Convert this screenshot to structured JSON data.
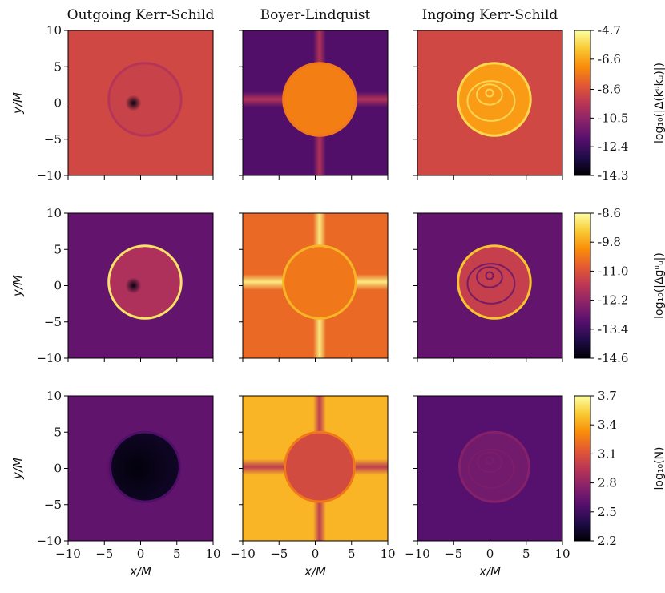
{
  "chart_data": {
    "type": "heatmap",
    "colormap": "inferno",
    "column_titles": [
      "Outgoing Kerr-Schild",
      "Boyer-Lindquist",
      "Ingoing Kerr-Schild"
    ],
    "xlabel": "x/M",
    "ylabel": "y/M",
    "xlim": [
      -10,
      10
    ],
    "ylim": [
      -10,
      10
    ],
    "axis_ticks": [
      -10,
      -5,
      0,
      5,
      10
    ],
    "axis_tick_labels": [
      "−10",
      "−5",
      "0",
      "5",
      "10"
    ],
    "rows": [
      {
        "quantity": "log10(|Δ(k^μ k_μ)|)",
        "colorbar_label": "log₁₀(|Δ(kᵘkᵤ)|)",
        "colorbar_ticks": [
          "-4.7",
          "-6.6",
          "-8.6",
          "-10.5",
          "-12.4",
          "-14.3"
        ],
        "vmin": -14.3,
        "vmax": -4.7,
        "panels": [
          {
            "background": -8.9,
            "disk": -9.1,
            "center": -14.0,
            "center_offset": [
              -1,
              0
            ],
            "ring": -9.6,
            "disk_x": 0.6,
            "disk_y": 0.5,
            "disk_r": 5.0
          },
          {
            "background": -12.0,
            "disk": -7.4,
            "ring": -7.6,
            "cross": -9.6,
            "disk_x": 0.6,
            "disk_y": 0.5,
            "disk_r": 5.0
          },
          {
            "background": -8.9,
            "disk": -6.8,
            "ring": -5.6,
            "swirl": -5.4,
            "disk_x": 0.6,
            "disk_y": 0.5,
            "disk_r": 5.0
          }
        ]
      },
      {
        "quantity": "log10(|Δg^μ_μ|)",
        "colorbar_label": "log₁₀(|Δgᵘᵤ|)",
        "colorbar_ticks": [
          "-8.6",
          "-9.8",
          "-11.0",
          "-12.2",
          "-13.4",
          "-14.6"
        ],
        "vmin": -14.6,
        "vmax": -8.6,
        "panels": [
          {
            "background": -12.9,
            "disk": -11.8,
            "center": -14.4,
            "center_offset": [
              -1,
              0
            ],
            "ring": -9.0,
            "disk_x": 0.6,
            "disk_y": 0.5,
            "disk_r": 5.0
          },
          {
            "background": -10.6,
            "disk": -10.4,
            "ring": -9.6,
            "cross": -8.8,
            "disk_x": 0.6,
            "disk_y": 0.5,
            "disk_r": 5.0
          },
          {
            "background": -12.9,
            "disk": -11.4,
            "ring": -9.4,
            "swirl": -12.8,
            "disk_x": 0.6,
            "disk_y": 0.5,
            "disk_r": 5.0
          }
        ]
      },
      {
        "quantity": "log10(N)",
        "colorbar_label": "log₁₀(N)",
        "colorbar_ticks": [
          "3.7",
          "3.4",
          "3.1",
          "2.8",
          "2.5",
          "2.2"
        ],
        "vmin": 2.2,
        "vmax": 3.7,
        "panels": [
          {
            "background": 2.62,
            "disk": 2.28,
            "center": 2.22,
            "center_offset": [
              -0.5,
              0
            ],
            "ring": 2.55,
            "disk_x": 0.6,
            "disk_y": 0.2,
            "disk_r": 4.8
          },
          {
            "background": 3.45,
            "disk": 3.06,
            "ring": 3.25,
            "cross": 2.95,
            "disk_x": 0.6,
            "disk_y": 0.2,
            "disk_r": 4.8
          },
          {
            "background": 2.58,
            "disk": 2.68,
            "ring": 2.75,
            "swirl": 2.72,
            "disk_x": 0.6,
            "disk_y": 0.2,
            "disk_r": 4.8
          }
        ]
      }
    ]
  }
}
